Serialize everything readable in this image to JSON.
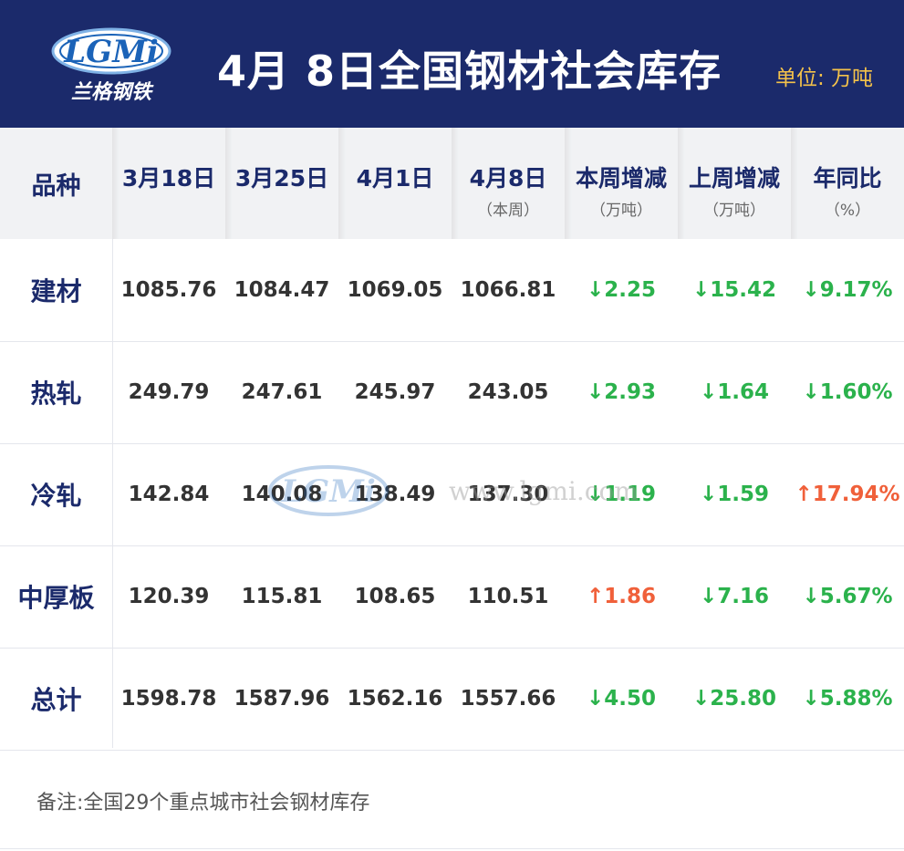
{
  "header": {
    "logo_text": "LGMi",
    "logo_cn": "兰格钢铁",
    "title": "4月 8日全国钢材社会库存",
    "unit": "单位: 万吨"
  },
  "columns": [
    {
      "main": "品种",
      "sub": ""
    },
    {
      "main": "3月18日",
      "sub": ""
    },
    {
      "main": "3月25日",
      "sub": ""
    },
    {
      "main": "4月1日",
      "sub": ""
    },
    {
      "main": "4月8日",
      "sub": "（本周）"
    },
    {
      "main": "本周增减",
      "sub": "（万吨）"
    },
    {
      "main": "上周增减",
      "sub": "（万吨）"
    },
    {
      "main": "年同比",
      "sub": "（%）"
    }
  ],
  "rows": [
    {
      "name": "建材",
      "v1": "1085.76",
      "v2": "1084.47",
      "v3": "1069.05",
      "v4": "1066.81",
      "wk": {
        "text": "↓2.25",
        "dir": "down"
      },
      "lwk": {
        "text": "↓15.42",
        "dir": "down"
      },
      "yoy": {
        "text": "↓9.17%",
        "dir": "down"
      }
    },
    {
      "name": "热轧",
      "v1": "249.79",
      "v2": "247.61",
      "v3": "245.97",
      "v4": "243.05",
      "wk": {
        "text": "↓2.93",
        "dir": "down"
      },
      "lwk": {
        "text": "↓1.64",
        "dir": "down"
      },
      "yoy": {
        "text": "↓1.60%",
        "dir": "down"
      }
    },
    {
      "name": "冷轧",
      "v1": "142.84",
      "v2": "140.08",
      "v3": "138.49",
      "v4": "137.30",
      "wk": {
        "text": "↓1.19",
        "dir": "down"
      },
      "lwk": {
        "text": "↓1.59",
        "dir": "down"
      },
      "yoy": {
        "text": "↑17.94%",
        "dir": "up"
      }
    },
    {
      "name": "中厚板",
      "v1": "120.39",
      "v2": "115.81",
      "v3": "108.65",
      "v4": "110.51",
      "wk": {
        "text": "↑1.86",
        "dir": "up"
      },
      "lwk": {
        "text": "↓7.16",
        "dir": "down"
      },
      "yoy": {
        "text": "↓5.67%",
        "dir": "down"
      }
    },
    {
      "name": "总计",
      "v1": "1598.78",
      "v2": "1587.96",
      "v3": "1562.16",
      "v4": "1557.66",
      "wk": {
        "text": "↓4.50",
        "dir": "down"
      },
      "lwk": {
        "text": "↓25.80",
        "dir": "down"
      },
      "yoy": {
        "text": "↓5.88%",
        "dir": "down"
      }
    }
  ],
  "watermark": {
    "logo_text": "LGMi",
    "url": "www.lgmi.com"
  },
  "note": "备注:全国29个重点城市社会钢材库存",
  "colors": {
    "header_bg": "#1b2a6b",
    "unit": "#f4c24a",
    "down": "#2bb24c",
    "up": "#f0603a"
  }
}
